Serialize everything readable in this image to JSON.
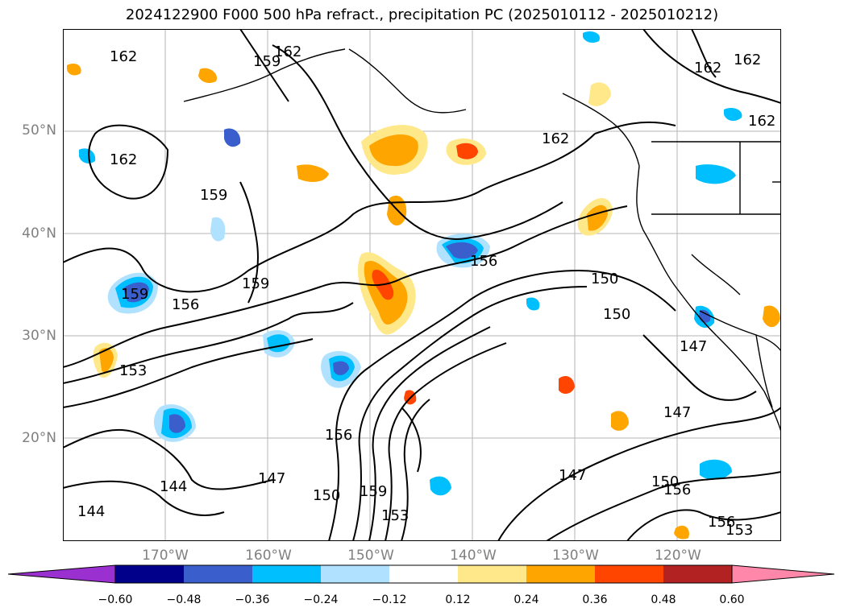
{
  "title": "2024122900 F000 500 hPa refract., precipitation PC (2025010112 - 2025010212)",
  "lat_labels": [
    "50°N",
    "40°N",
    "30°N",
    "20°N"
  ],
  "lon_labels": [
    "170°W",
    "160°W",
    "150°W",
    "140°W",
    "130°W",
    "120°W"
  ],
  "contour_labels": [
    "162",
    "159",
    "156",
    "153",
    "150",
    "147",
    "144"
  ],
  "colorbar": {
    "ticks": [
      "−0.60",
      "−0.48",
      "−0.36",
      "−0.24",
      "−0.12",
      "0.12",
      "0.24",
      "0.36",
      "0.48",
      "0.60"
    ],
    "colors": [
      "#9b30d0",
      "#00008b",
      "#3a5fcd",
      "#00bfff",
      "#b0e2ff",
      "#ffffff",
      "#ffe88a",
      "#ffa500",
      "#ff4500",
      "#b22222",
      "#ff88aa"
    ]
  },
  "feature_colors": {
    "coast": "#000000",
    "grid": "#b0b0b0",
    "contour": "#000000"
  }
}
